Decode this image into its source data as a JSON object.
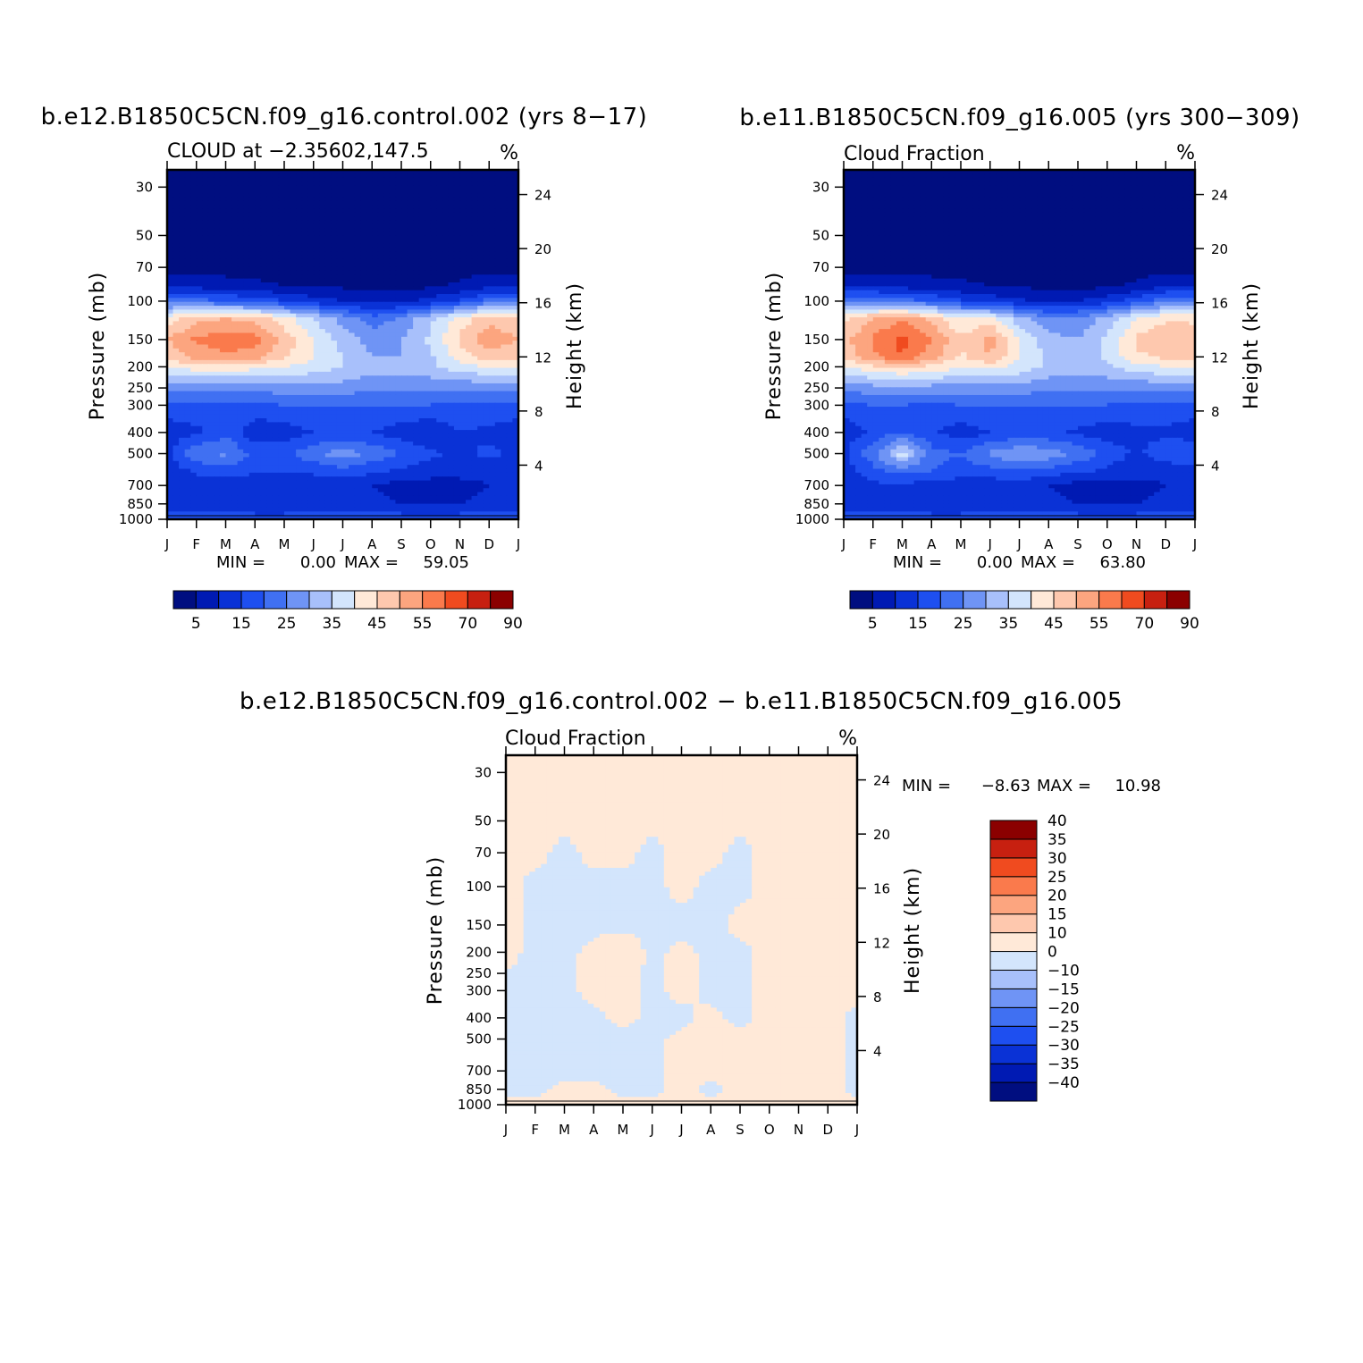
{
  "chart_data": [
    {
      "type": "heatmap",
      "title": "b.e12.B1850C5CN.f09_g16.control.002 (yrs 8−17)",
      "left_label": "CLOUD at −2.35602,147.5",
      "right_label": "%",
      "ylabel": "Pressure (mb)",
      "y2label": "Height (km)",
      "x": [
        "J",
        "F",
        "M",
        "A",
        "M",
        "J",
        "J",
        "A",
        "S",
        "O",
        "N",
        "D",
        "J"
      ],
      "yticks": [
        "30",
        "50",
        "70",
        "100",
        "150",
        "200",
        "250",
        "300",
        "400",
        "500",
        "700",
        "850",
        "1000"
      ],
      "y2ticks": [
        "24",
        "20",
        "16",
        "12",
        "8",
        "4"
      ],
      "stats": {
        "min_label": "MIN =",
        "min": "0.00",
        "max_label": "MAX =",
        "max": "59.05"
      },
      "colorbar": {
        "orientation": "horizontal",
        "levels": [
          "5",
          "10",
          "15",
          "20",
          "25",
          "30",
          "35",
          "40",
          "45",
          "50",
          "55",
          "60",
          "70",
          "80",
          "90"
        ],
        "labels": [
          "5",
          "15",
          "25",
          "35",
          "45",
          "55",
          "70",
          "90"
        ],
        "colors": [
          "#000e80",
          "#001ab3",
          "#0a32d6",
          "#1e4ff0",
          "#4070f2",
          "#6f94f5",
          "#a8c0fb",
          "#d3e5fc",
          "#ffe9d8",
          "#fec8ae",
          "#fca57f",
          "#fa7a4c",
          "#f04b1f",
          "#c72010",
          "#8b0000"
        ]
      },
      "data": {
        "columns": [
          "J",
          "F",
          "M",
          "A",
          "M",
          "J",
          "J",
          "A",
          "S",
          "O",
          "N",
          "D",
          "J"
        ],
        "rows_desc": "pressure (mb): 30,50,70,85,100,120,150,180,200,250,300,400,500,600,700,850,1000",
        "values": [
          [
            2,
            2,
            2,
            2,
            2,
            2,
            2,
            2,
            2,
            2,
            2,
            2,
            2
          ],
          [
            2,
            2,
            2,
            2,
            2,
            2,
            2,
            2,
            2,
            2,
            2,
            2,
            2
          ],
          [
            3,
            3,
            3,
            3,
            3,
            2,
            2,
            2,
            2,
            2,
            3,
            3,
            3
          ],
          [
            8,
            8,
            7,
            6,
            5,
            4,
            4,
            3,
            3,
            4,
            6,
            8,
            8
          ],
          [
            22,
            22,
            20,
            18,
            15,
            12,
            10,
            8,
            9,
            12,
            16,
            22,
            22
          ],
          [
            42,
            48,
            50,
            48,
            42,
            35,
            28,
            22,
            26,
            34,
            42,
            48,
            45
          ],
          [
            50,
            56,
            58,
            57,
            48,
            40,
            33,
            28,
            30,
            36,
            46,
            54,
            50
          ],
          [
            46,
            52,
            54,
            52,
            46,
            40,
            35,
            30,
            30,
            34,
            42,
            48,
            46
          ],
          [
            40,
            43,
            44,
            42,
            40,
            38,
            35,
            32,
            32,
            34,
            38,
            40,
            40
          ],
          [
            26,
            26,
            26,
            26,
            28,
            28,
            28,
            26,
            26,
            26,
            26,
            26,
            26
          ],
          [
            18,
            18,
            18,
            18,
            20,
            20,
            20,
            20,
            20,
            20,
            18,
            18,
            18
          ],
          [
            12,
            14,
            18,
            12,
            12,
            15,
            15,
            15,
            12,
            10,
            15,
            14,
            12
          ],
          [
            14,
            24,
            26,
            18,
            18,
            24,
            28,
            24,
            20,
            16,
            14,
            16,
            14
          ],
          [
            12,
            16,
            18,
            16,
            16,
            16,
            18,
            16,
            14,
            12,
            12,
            12,
            12
          ],
          [
            10,
            12,
            12,
            10,
            10,
            12,
            12,
            10,
            8,
            8,
            8,
            10,
            10
          ],
          [
            12,
            12,
            12,
            10,
            10,
            12,
            12,
            12,
            10,
            10,
            10,
            12,
            12
          ],
          [
            18,
            18,
            18,
            18,
            18,
            18,
            18,
            18,
            18,
            18,
            18,
            18,
            18
          ]
        ]
      }
    },
    {
      "type": "heatmap",
      "title": "b.e11.B1850C5CN.f09_g16.005 (yrs 300−309)",
      "left_label": "Cloud Fraction",
      "right_label": "%",
      "ylabel": "Pressure (mb)",
      "y2label": "Height (km)",
      "x": [
        "J",
        "F",
        "M",
        "A",
        "M",
        "J",
        "J",
        "A",
        "S",
        "O",
        "N",
        "D",
        "J"
      ],
      "yticks": [
        "30",
        "50",
        "70",
        "100",
        "150",
        "200",
        "250",
        "300",
        "400",
        "500",
        "700",
        "850",
        "1000"
      ],
      "y2ticks": [
        "24",
        "20",
        "16",
        "12",
        "8",
        "4"
      ],
      "stats": {
        "min_label": "MIN =",
        "min": "0.00",
        "max_label": "MAX =",
        "max": "63.80"
      },
      "colorbar": {
        "orientation": "horizontal",
        "levels": [
          "5",
          "10",
          "15",
          "20",
          "25",
          "30",
          "35",
          "40",
          "45",
          "50",
          "55",
          "60",
          "70",
          "80",
          "90"
        ],
        "labels": [
          "5",
          "15",
          "25",
          "35",
          "45",
          "55",
          "70",
          "90"
        ],
        "colors": [
          "#000e80",
          "#001ab3",
          "#0a32d6",
          "#1e4ff0",
          "#4070f2",
          "#6f94f5",
          "#a8c0fb",
          "#d3e5fc",
          "#ffe9d8",
          "#fec8ae",
          "#fca57f",
          "#fa7a4c",
          "#f04b1f",
          "#c72010",
          "#8b0000"
        ]
      },
      "data": {
        "columns": [
          "J",
          "F",
          "M",
          "A",
          "M",
          "J",
          "J",
          "A",
          "S",
          "O",
          "N",
          "D",
          "J"
        ],
        "rows_desc": "pressure (mb): 30,50,70,85,100,120,150,180,200,250,300,400,500,600,700,850,1000",
        "values": [
          [
            2,
            2,
            2,
            2,
            2,
            2,
            2,
            2,
            2,
            2,
            2,
            2,
            2
          ],
          [
            2,
            2,
            2,
            2,
            2,
            2,
            2,
            2,
            2,
            2,
            2,
            2,
            2
          ],
          [
            3,
            3,
            3,
            3,
            3,
            2,
            2,
            2,
            2,
            2,
            3,
            3,
            3
          ],
          [
            9,
            9,
            8,
            7,
            6,
            5,
            4,
            4,
            3,
            4,
            6,
            9,
            9
          ],
          [
            24,
            24,
            22,
            20,
            16,
            13,
            11,
            9,
            10,
            13,
            18,
            24,
            24
          ],
          [
            44,
            50,
            54,
            48,
            40,
            42,
            32,
            26,
            26,
            32,
            40,
            44,
            44
          ],
          [
            48,
            56,
            62,
            55,
            46,
            52,
            40,
            32,
            30,
            36,
            46,
            50,
            48
          ],
          [
            46,
            54,
            60,
            52,
            44,
            50,
            40,
            34,
            32,
            36,
            44,
            46,
            46
          ],
          [
            40,
            44,
            46,
            44,
            40,
            42,
            38,
            34,
            32,
            34,
            38,
            40,
            40
          ],
          [
            26,
            28,
            28,
            28,
            28,
            28,
            28,
            26,
            26,
            26,
            26,
            26,
            26
          ],
          [
            18,
            20,
            20,
            18,
            20,
            20,
            20,
            20,
            20,
            20,
            18,
            18,
            18
          ],
          [
            12,
            16,
            20,
            16,
            12,
            15,
            16,
            16,
            14,
            12,
            14,
            14,
            12
          ],
          [
            14,
            24,
            38,
            22,
            20,
            26,
            30,
            28,
            24,
            18,
            14,
            18,
            20
          ],
          [
            12,
            18,
            22,
            20,
            18,
            18,
            20,
            18,
            16,
            14,
            12,
            12,
            12
          ],
          [
            10,
            14,
            14,
            12,
            12,
            12,
            12,
            10,
            8,
            8,
            8,
            10,
            10
          ],
          [
            12,
            12,
            12,
            10,
            10,
            12,
            12,
            12,
            10,
            10,
            10,
            12,
            12
          ],
          [
            18,
            18,
            18,
            18,
            18,
            18,
            18,
            18,
            18,
            18,
            18,
            18,
            18
          ]
        ]
      }
    },
    {
      "type": "heatmap",
      "title": "b.e12.B1850C5CN.f09_g16.control.002 − b.e11.B1850C5CN.f09_g16.005",
      "left_label": "Cloud Fraction",
      "right_label": "%",
      "ylabel": "Pressure (mb)",
      "y2label": "Height (km)",
      "x": [
        "J",
        "F",
        "M",
        "A",
        "M",
        "J",
        "J",
        "A",
        "S",
        "O",
        "N",
        "D",
        "J"
      ],
      "yticks": [
        "30",
        "50",
        "70",
        "100",
        "150",
        "200",
        "250",
        "300",
        "400",
        "500",
        "700",
        "850",
        "1000"
      ],
      "y2ticks": [
        "24",
        "20",
        "16",
        "12",
        "8",
        "4"
      ],
      "stats": {
        "min_label": "MIN =",
        "min": "−8.63",
        "max_label": "MAX =",
        "max": "10.98"
      },
      "colorbar": {
        "orientation": "vertical",
        "levels": [
          "−40",
          "−35",
          "−30",
          "−25",
          "−20",
          "−15",
          "−10",
          "0",
          "10",
          "15",
          "20",
          "25",
          "30",
          "35",
          "40"
        ],
        "labels": [
          "−40",
          "−35",
          "−30",
          "−25",
          "−20",
          "−15",
          "−10",
          "0",
          "10",
          "15",
          "20",
          "25",
          "30",
          "35",
          "40"
        ],
        "colors": [
          "#000e80",
          "#001ab3",
          "#0a32d6",
          "#1e4ff0",
          "#4070f2",
          "#6f94f5",
          "#a8c0fb",
          "#d3e5fc",
          "#ffe9d8",
          "#fec8ae",
          "#fca57f",
          "#fa7a4c",
          "#f04b1f",
          "#c72010",
          "#8b0000"
        ]
      },
      "data": {
        "columns": [
          "J",
          "F",
          "M",
          "A",
          "M",
          "J",
          "J",
          "A",
          "S",
          "O",
          "N",
          "D",
          "J"
        ],
        "rows_desc": "pressure (mb): 30,50,70,100,150,200,300,400,500,700,850,1000",
        "values": [
          [
            0.5,
            0.5,
            0.5,
            0.5,
            0.5,
            0.5,
            0.5,
            0.5,
            0.5,
            0.5,
            0.5,
            0.5,
            0.5
          ],
          [
            0.5,
            0.5,
            0.5,
            0.5,
            0.5,
            0.5,
            0.5,
            0.5,
            0.5,
            0.5,
            0.5,
            0.5,
            0.5
          ],
          [
            0.5,
            0.5,
            -0.5,
            0.5,
            0.5,
            -0.5,
            0.5,
            0.5,
            -0.5,
            0.5,
            0.5,
            0.5,
            0.5
          ],
          [
            0.5,
            -0.5,
            -0.5,
            -0.5,
            -0.5,
            -0.5,
            0.5,
            -0.5,
            -0.5,
            0.5,
            0.5,
            0.5,
            0.5
          ],
          [
            0.5,
            -0.5,
            -0.5,
            -0.5,
            -0.5,
            -0.5,
            -0.5,
            -0.5,
            0.5,
            0.5,
            0.5,
            1.5,
            0.5
          ],
          [
            0.5,
            -0.5,
            -0.5,
            0.5,
            1.5,
            -0.5,
            0.5,
            -0.5,
            -0.5,
            0.5,
            0.5,
            0.5,
            0.5
          ],
          [
            -0.5,
            -0.5,
            -0.5,
            0.5,
            0.5,
            -0.5,
            0.5,
            -0.5,
            -0.5,
            0.5,
            0.5,
            0.5,
            0.5
          ],
          [
            -0.5,
            -0.5,
            -0.5,
            -0.5,
            0.5,
            -0.5,
            -0.5,
            0.5,
            -0.5,
            0.5,
            0.5,
            0.5,
            -0.5
          ],
          [
            -0.5,
            -0.5,
            -0.5,
            -0.5,
            -0.5,
            -0.5,
            0.5,
            0.5,
            0.5,
            0.5,
            0.5,
            0.5,
            -0.5
          ],
          [
            -0.5,
            -0.5,
            -0.5,
            -0.5,
            -0.5,
            -0.5,
            0.5,
            0.5,
            0.5,
            0.5,
            0.5,
            0.5,
            -0.5
          ],
          [
            -0.5,
            -0.5,
            0.5,
            0.5,
            -0.5,
            -0.5,
            0.5,
            -0.5,
            0.5,
            0.5,
            0.5,
            0.5,
            -0.5
          ],
          [
            0.5,
            0.5,
            0.5,
            0.5,
            0.5,
            0.5,
            0.5,
            0.5,
            0.5,
            0.5,
            0.5,
            0.5,
            0.5
          ]
        ]
      }
    }
  ]
}
